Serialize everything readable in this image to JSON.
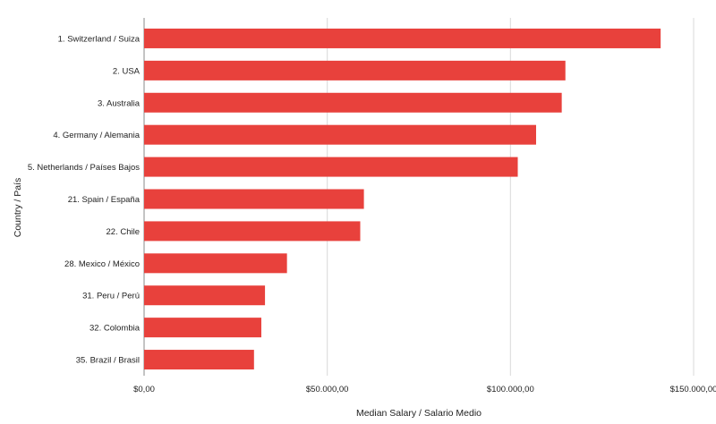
{
  "chart_data": {
    "type": "bar",
    "orientation": "horizontal",
    "title": "",
    "xlabel": "Median Salary / Salario Medio",
    "ylabel": "Country / País",
    "xlim": [
      0,
      150000
    ],
    "x_ticks": [
      0,
      50000,
      100000,
      150000
    ],
    "x_tick_labels": [
      "$0,00",
      "$50.000,00",
      "$100.000,00",
      "$150.000,00"
    ],
    "grid": true,
    "bar_color": "#e8413c",
    "categories": [
      "1. Switzerland / Suiza",
      "2. USA",
      "3. Australia",
      "4. Germany / Alemania",
      "5. Netherlands / Países Bajos",
      "21. Spain / España",
      "22. Chile",
      "28. Mexico / México",
      "31. Peru / Perú",
      "32. Colombia",
      "35. Brazil / Brasil"
    ],
    "values": [
      141000,
      115000,
      114000,
      107000,
      102000,
      60000,
      59000,
      39000,
      33000,
      32000,
      30000
    ]
  }
}
